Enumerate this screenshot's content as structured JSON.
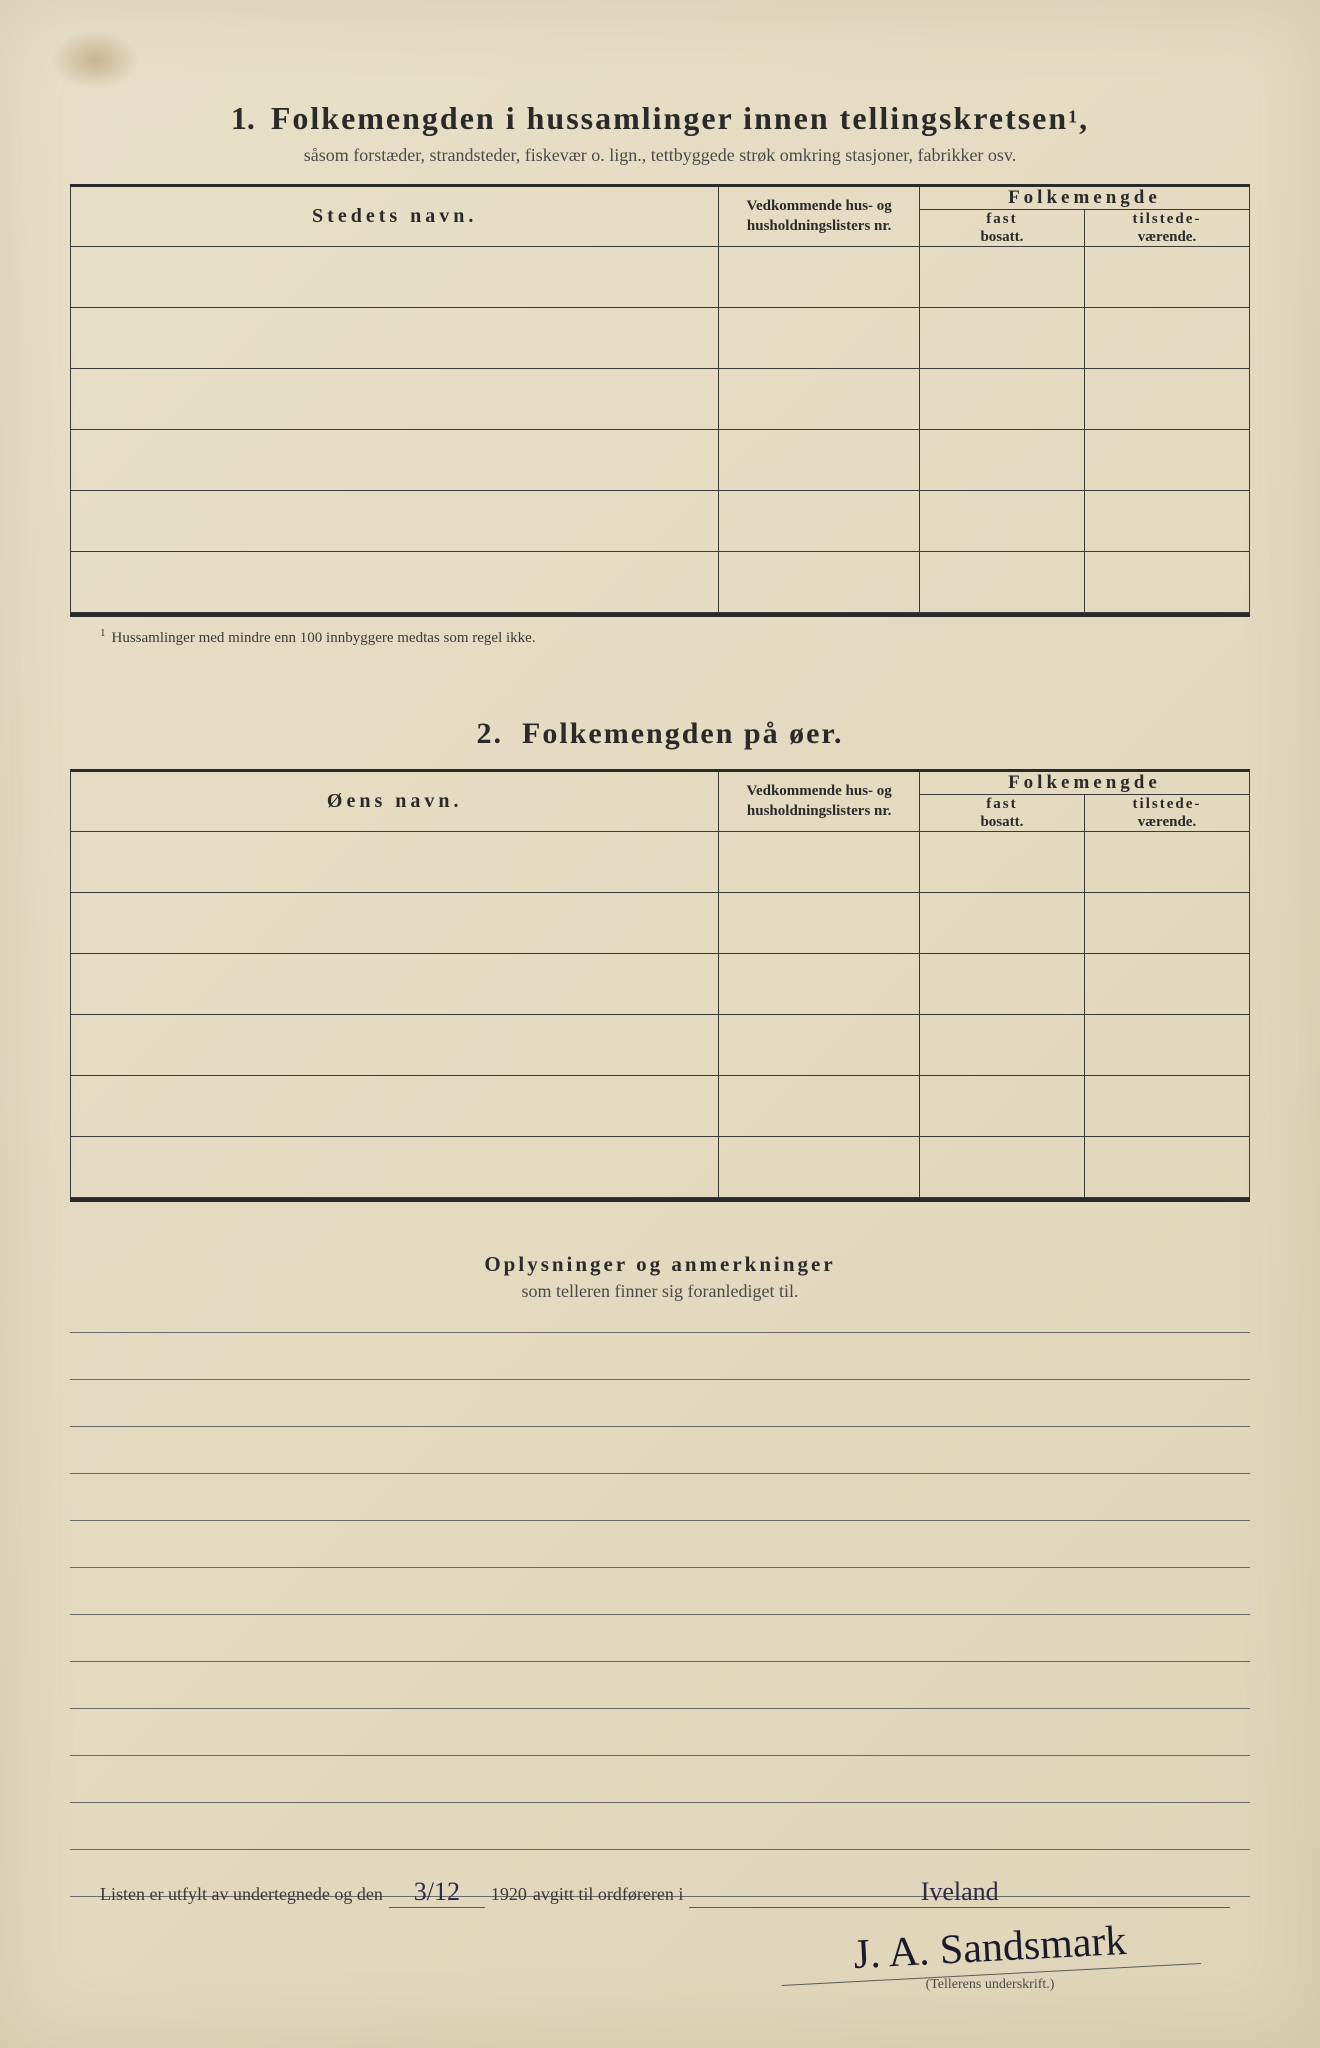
{
  "colors": {
    "paper_bg": "#e4dac0",
    "text": "#2a2a2a",
    "rule": "#3a3a3a",
    "ink_handwriting": "#2a2a4a"
  },
  "section1": {
    "number": "1.",
    "title": "Folkemengden i hussamlinger innen tellingskretsen",
    "title_sup": "1",
    "subtitle": "såsom forstæder, strandsteder, fiskevær o. lign., tettbyggede strøk omkring stasjoner, fabrikker osv.",
    "col_name": "Stedets navn.",
    "col_nr": "Vedkommende hus- og husholdningslisters nr.",
    "col_folk": "Folkemengde",
    "col_fast_b": "fast",
    "col_fast": "bosatt.",
    "col_tilst_b": "tilstede-",
    "col_tilst": "værende.",
    "row_count": 6,
    "footnote_num": "1",
    "footnote": "Hussamlinger med mindre enn 100 innbyggere medtas som regel ikke."
  },
  "section2": {
    "number": "2.",
    "title": "Folkemengden på øer.",
    "col_name": "Øens navn.",
    "col_nr": "Vedkommende hus- og husholdningslisters nr.",
    "col_folk": "Folkemengde",
    "col_fast_b": "fast",
    "col_fast": "bosatt.",
    "col_tilst_b": "tilstede-",
    "col_tilst": "værende.",
    "row_count": 6
  },
  "remarks": {
    "heading": "Oplysninger og anmerkninger",
    "sub": "som telleren finner sig foranlediget til.",
    "line_count": 12
  },
  "footer": {
    "prefix": "Listen er utfylt av undertegnede og den",
    "date": "3/12",
    "year": "1920",
    "middle": "avgitt til ordføreren i",
    "place": "Iveland",
    "signature": "J. A. Sandsmark",
    "sig_label": "(Tellerens underskrift.)"
  }
}
